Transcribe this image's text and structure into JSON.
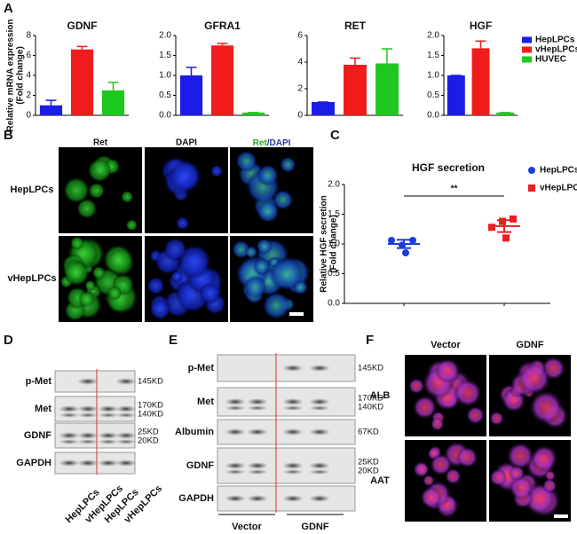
{
  "panel_labels": [
    "A",
    "B",
    "C",
    "D",
    "E",
    "F"
  ],
  "chart_data": [
    {
      "type": "bar",
      "title": "GDNF",
      "ylabel": [
        "Relative mRNA expression",
        "(Fold change)"
      ],
      "values": [
        1.0,
        6.6,
        2.5
      ],
      "errors": [
        0.5,
        0.3,
        0.8
      ],
      "ylim": [
        0,
        8
      ],
      "yticks": [
        0,
        2,
        4,
        6,
        8
      ],
      "legend": {
        "position": "right",
        "entries": [
          {
            "name": "HepLPCs",
            "color": "#1c1ce8"
          },
          {
            "name": "vHepLPCs",
            "color": "#f01c1c"
          },
          {
            "name": "HUVEC",
            "color": "#1ec81e"
          }
        ]
      }
    },
    {
      "type": "bar",
      "title": "GFRA1",
      "values": [
        1.0,
        1.75,
        0.07
      ],
      "errors": [
        0.2,
        0.05,
        0
      ],
      "ylim": [
        0,
        2
      ],
      "yticks": [
        {
          "value": 0,
          "label": "0.0"
        },
        0.5,
        {
          "value": 1,
          "label": "1.0"
        },
        1.5,
        {
          "value": 2,
          "label": "2.0"
        }
      ]
    },
    {
      "type": "bar",
      "title": "RET",
      "values": [
        1.0,
        3.8,
        3.9
      ],
      "errors": [
        0,
        0.5,
        1.1
      ],
      "ylim": [
        0,
        6
      ],
      "yticks": [
        0,
        2,
        4,
        6
      ]
    },
    {
      "type": "bar",
      "title": "HGF",
      "values": [
        1.0,
        1.68,
        0.07
      ],
      "errors": [
        0,
        0.18,
        0
      ],
      "ylim": [
        0,
        2
      ],
      "yticks": [
        {
          "value": 0,
          "label": "0.0"
        },
        0.5,
        {
          "value": 1,
          "label": "1.0"
        },
        1.5,
        {
          "value": 2,
          "label": "2.0"
        }
      ]
    },
    {
      "type": "scatter",
      "title": "HGF secretion",
      "ylabel": [
        "Relative HGF secretion",
        "(Fold change)"
      ],
      "ylim": [
        0,
        2
      ],
      "yticks": [
        {
          "value": 0,
          "label": "0.0"
        },
        0.5,
        {
          "value": 1,
          "label": "1.0"
        },
        1.5,
        {
          "value": 2,
          "label": "2.0"
        }
      ],
      "annotation": "**",
      "series": [
        {
          "name": "HepLPCs",
          "color": "#1c3ce0",
          "marker": "circle",
          "values": [
            0.85,
            1.06,
            0.98,
            1.06
          ],
          "mean": 1.0,
          "error": 0.07
        },
        {
          "name": "vHepLPCs",
          "color": "#e82020",
          "marker": "square",
          "values": [
            1.1,
            1.28,
            1.38,
            1.42
          ],
          "mean": 1.3,
          "error": 0.1
        }
      ]
    }
  ],
  "panel_b": {
    "columns": [
      "Ret",
      "DAPI"
    ],
    "merge": [
      "Ret",
      "/DAPI"
    ],
    "rows": [
      "HepLPCs",
      "vHepLPCs"
    ]
  },
  "panel_d": {
    "rows": [
      {
        "label": "p-Met",
        "sizes": [
          "145KD"
        ]
      },
      {
        "label": "Met",
        "sizes": [
          "170KD",
          "140KD"
        ]
      },
      {
        "label": "GDNF",
        "sizes": [
          "25KD",
          "20KD"
        ]
      },
      {
        "label": "GAPDH",
        "sizes": []
      }
    ],
    "lanes": [
      "HepLPCs",
      "vHepLPCs",
      "HepLPCs",
      "vHepLPCs"
    ]
  },
  "panel_e": {
    "rows": [
      {
        "label": "p-Met",
        "sizes": [
          "145KD"
        ]
      },
      {
        "label": "Met",
        "sizes": [
          "170KD",
          "140KD"
        ]
      },
      {
        "label": "Albumin",
        "sizes": [
          "67KD"
        ]
      },
      {
        "label": "GDNF",
        "sizes": [
          "25KD",
          "20KD"
        ]
      },
      {
        "label": "GAPDH",
        "sizes": []
      }
    ],
    "groups": [
      "Vector",
      "GDNF"
    ]
  },
  "panel_f": {
    "columns": [
      "Vector",
      "GDNF"
    ],
    "rows": [
      "ALB",
      "AAT"
    ]
  }
}
